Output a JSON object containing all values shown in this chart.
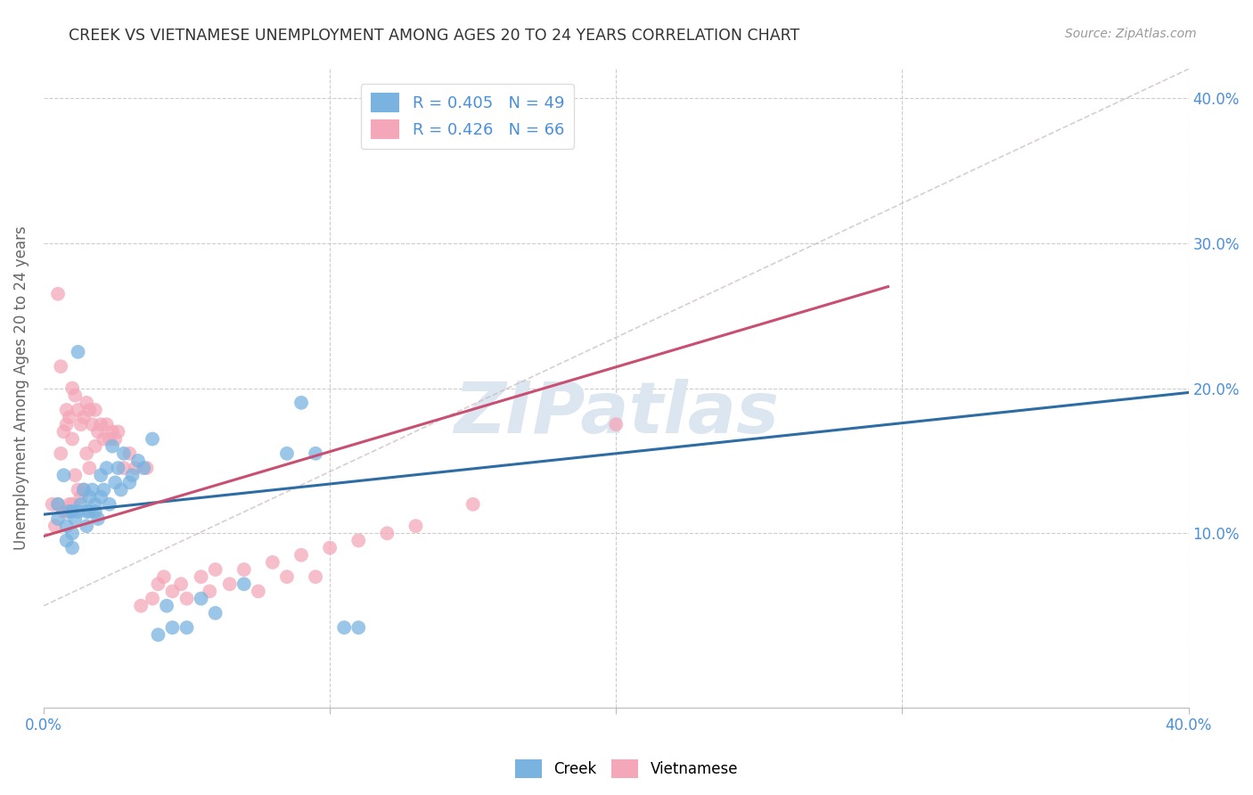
{
  "title": "CREEK VS VIETNAMESE UNEMPLOYMENT AMONG AGES 20 TO 24 YEARS CORRELATION CHART",
  "source": "Source: ZipAtlas.com",
  "ylabel": "Unemployment Among Ages 20 to 24 years",
  "xlim": [
    0.0,
    0.4
  ],
  "ylim": [
    -0.02,
    0.42
  ],
  "creek_R": 0.405,
  "creek_N": 49,
  "vietnamese_R": 0.426,
  "vietnamese_N": 66,
  "creek_color": "#7ab3e0",
  "vietnamese_color": "#f4a7b9",
  "creek_line_color": "#2e6da4",
  "vietnamese_line_color": "#c94f72",
  "diagonal_color": "#d4a0b0",
  "background_color": "#ffffff",
  "grid_color": "#cccccc",
  "title_color": "#333333",
  "axis_label_color": "#666666",
  "right_axis_color": "#4a90d9",
  "watermark_color": "#dce6f0",
  "creek_line_x0": 0.0,
  "creek_line_y0": 0.113,
  "creek_line_x1": 0.4,
  "creek_line_y1": 0.197,
  "viet_line_x0": 0.0,
  "viet_line_y0": 0.098,
  "viet_line_x1": 0.295,
  "viet_line_y1": 0.27,
  "creek_x": [
    0.005,
    0.005,
    0.007,
    0.008,
    0.008,
    0.009,
    0.01,
    0.01,
    0.01,
    0.011,
    0.012,
    0.012,
    0.013,
    0.014,
    0.015,
    0.015,
    0.016,
    0.016,
    0.017,
    0.018,
    0.018,
    0.019,
    0.02,
    0.02,
    0.021,
    0.022,
    0.023,
    0.024,
    0.025,
    0.026,
    0.027,
    0.028,
    0.03,
    0.031,
    0.033,
    0.035,
    0.038,
    0.04,
    0.043,
    0.045,
    0.05,
    0.055,
    0.06,
    0.07,
    0.085,
    0.09,
    0.095,
    0.105,
    0.11
  ],
  "creek_y": [
    0.12,
    0.11,
    0.14,
    0.105,
    0.095,
    0.115,
    0.115,
    0.1,
    0.09,
    0.11,
    0.225,
    0.115,
    0.12,
    0.13,
    0.115,
    0.105,
    0.125,
    0.115,
    0.13,
    0.12,
    0.115,
    0.11,
    0.14,
    0.125,
    0.13,
    0.145,
    0.12,
    0.16,
    0.135,
    0.145,
    0.13,
    0.155,
    0.135,
    0.14,
    0.15,
    0.145,
    0.165,
    0.03,
    0.05,
    0.035,
    0.035,
    0.055,
    0.045,
    0.065,
    0.155,
    0.19,
    0.155,
    0.035,
    0.035
  ],
  "viet_x": [
    0.003,
    0.004,
    0.005,
    0.005,
    0.006,
    0.006,
    0.007,
    0.007,
    0.008,
    0.008,
    0.008,
    0.009,
    0.009,
    0.01,
    0.01,
    0.01,
    0.011,
    0.011,
    0.012,
    0.012,
    0.013,
    0.013,
    0.014,
    0.014,
    0.015,
    0.015,
    0.016,
    0.016,
    0.017,
    0.018,
    0.018,
    0.019,
    0.02,
    0.021,
    0.022,
    0.023,
    0.024,
    0.025,
    0.026,
    0.028,
    0.03,
    0.032,
    0.034,
    0.036,
    0.038,
    0.04,
    0.042,
    0.045,
    0.048,
    0.05,
    0.055,
    0.058,
    0.06,
    0.065,
    0.07,
    0.075,
    0.08,
    0.085,
    0.09,
    0.095,
    0.1,
    0.11,
    0.12,
    0.13,
    0.15,
    0.2
  ],
  "viet_y": [
    0.12,
    0.105,
    0.265,
    0.12,
    0.215,
    0.155,
    0.17,
    0.115,
    0.185,
    0.175,
    0.115,
    0.18,
    0.12,
    0.2,
    0.165,
    0.12,
    0.195,
    0.14,
    0.185,
    0.13,
    0.175,
    0.125,
    0.18,
    0.13,
    0.19,
    0.155,
    0.185,
    0.145,
    0.175,
    0.185,
    0.16,
    0.17,
    0.175,
    0.165,
    0.175,
    0.165,
    0.17,
    0.165,
    0.17,
    0.145,
    0.155,
    0.145,
    0.05,
    0.145,
    0.055,
    0.065,
    0.07,
    0.06,
    0.065,
    0.055,
    0.07,
    0.06,
    0.075,
    0.065,
    0.075,
    0.06,
    0.08,
    0.07,
    0.085,
    0.07,
    0.09,
    0.095,
    0.1,
    0.105,
    0.12,
    0.175
  ]
}
